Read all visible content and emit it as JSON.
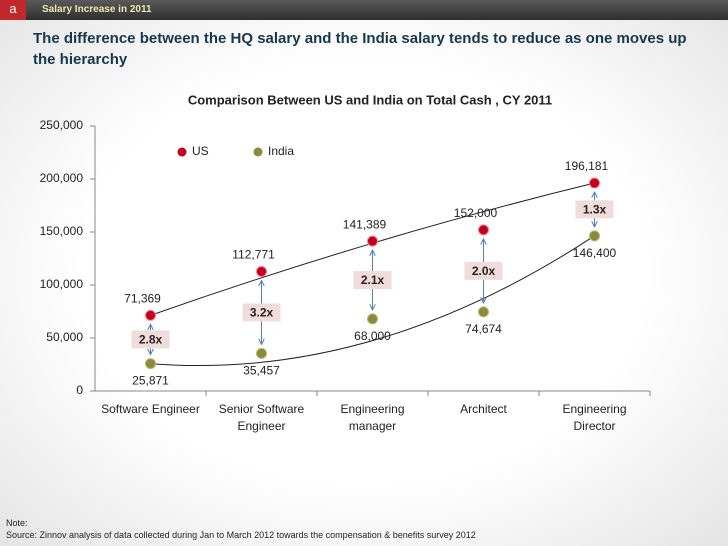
{
  "header": {
    "badge": "a",
    "section": "Salary Increase in 2011",
    "title": "The difference between the HQ salary and the India salary tends to reduce as one moves up the hierarchy"
  },
  "chart_data": {
    "type": "scatter",
    "title": "Comparison Between US and India on Total Cash , CY 2011",
    "categories": [
      "Software Engineer",
      "Senior Software Engineer",
      "Engineering manager",
      "Architect",
      "Engineering Director"
    ],
    "series": [
      {
        "name": "US",
        "color": "#c00020",
        "values": [
          71369,
          112771,
          141389,
          152000,
          196181
        ],
        "value_labels": [
          "71,369",
          "112,771",
          "141,389",
          "152,000",
          "196,181"
        ]
      },
      {
        "name": "India",
        "color": "#8a8a3a",
        "values": [
          25871,
          35457,
          68000,
          74674,
          146400
        ],
        "value_labels": [
          "25,871",
          "35,457",
          "68,000",
          "74,674",
          "146,400"
        ]
      }
    ],
    "annotations": [
      "2.8x",
      "3.2x",
      "2.1x",
      "2.0x",
      "1.3x"
    ],
    "ylim": [
      0,
      250000
    ],
    "yticks": [
      0,
      {
        "value": 50000,
        "label": "50,000"
      },
      {
        "value": 100000,
        "label": "100,000"
      },
      {
        "value": 150000,
        "label": "150,000"
      },
      {
        "value": 200000,
        "label": "200,000"
      },
      {
        "value": 250000,
        "label": "250,000"
      }
    ],
    "legend": "top",
    "grid": false
  },
  "footer": {
    "note": "Note:",
    "source": "Source: Zinnov analysis of data collected during Jan to March 2012 towards the compensation & benefits survey 2012"
  }
}
